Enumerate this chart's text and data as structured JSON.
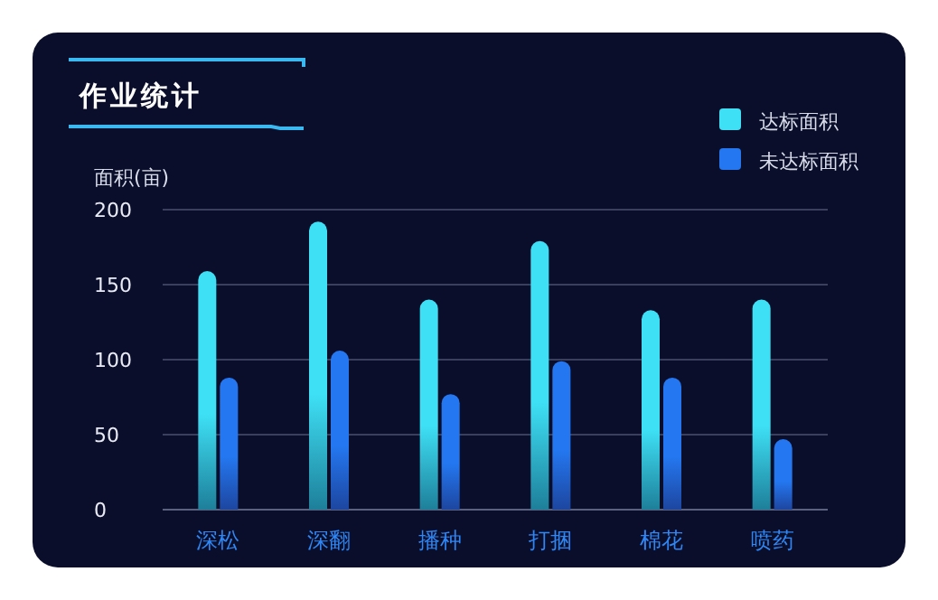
{
  "chart_data": {
    "type": "bar",
    "title": "作业统计",
    "ylabel": "面积(亩)",
    "categories": [
      "深松",
      "深翻",
      "播种",
      "打捆",
      "棉花",
      "喷药"
    ],
    "series": [
      {
        "name": "达标面积",
        "color": "#3ee0f5",
        "values": [
          159,
          192,
          140,
          179,
          133,
          140
        ]
      },
      {
        "name": "未达标面积",
        "color": "#2477f0",
        "values": [
          88,
          106,
          77,
          99,
          88,
          47
        ]
      }
    ],
    "ylim": [
      0,
      200
    ],
    "yticks": [
      0,
      50,
      100,
      150,
      200
    ],
    "grid": "y",
    "legend": "top right"
  }
}
